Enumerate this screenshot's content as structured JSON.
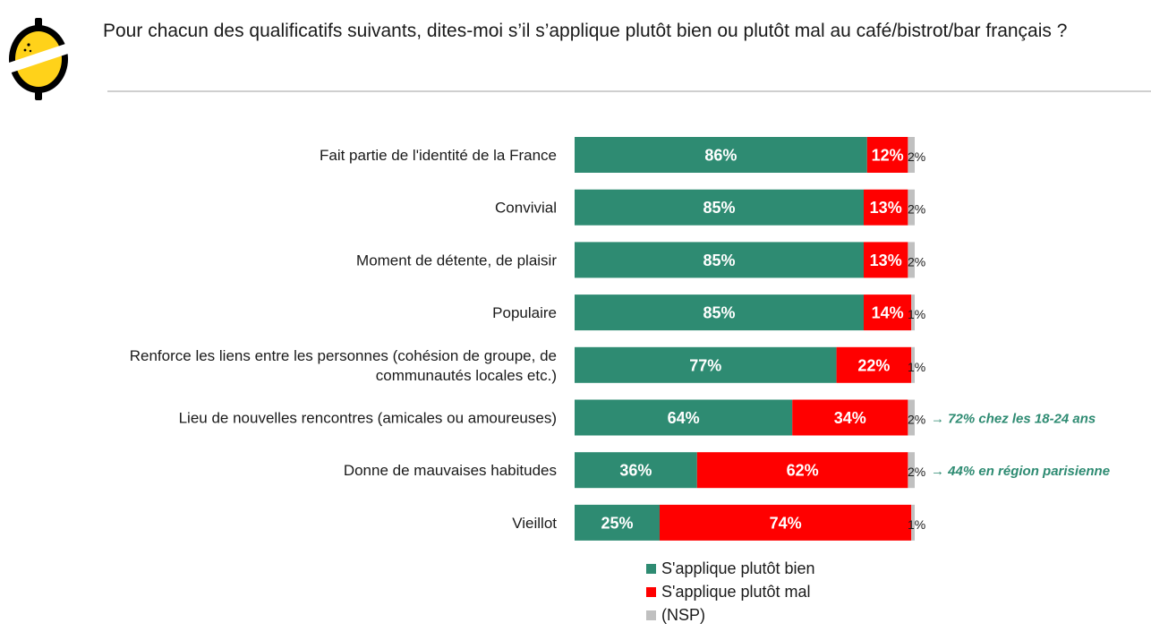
{
  "header": {
    "title": "Pour chacun des qualificatifs suivants, dites-moi s’il s’applique plutôt bien ou plutôt mal au café/bistrot/bar français ?"
  },
  "logo": {
    "icon": "lemon-logo-icon",
    "colors": {
      "body": "#000000",
      "fill": "#ffd21a"
    }
  },
  "colors": {
    "bien": "#2e8b72",
    "mal": "#ff0000",
    "nsp": "#c0c0c0",
    "note": "#2e8b72"
  },
  "chart_data": {
    "type": "bar",
    "orientation": "horizontal",
    "stacked": true,
    "categories": [
      [
        "Fait partie de l'identité de la France"
      ],
      [
        "Convivial"
      ],
      [
        "Moment de détente, de plaisir"
      ],
      [
        "Populaire"
      ],
      [
        "Renforce les liens entre les personnes (cohésion de groupe, de",
        "communautés locales etc.)"
      ],
      [
        "Lieu de nouvelles rencontres (amicales ou amoureuses)"
      ],
      [
        "Donne de mauvaises habitudes"
      ],
      [
        "Vieillot"
      ]
    ],
    "series": [
      {
        "name": "S'applique plutôt bien",
        "color": "#2e8b72",
        "values": [
          86,
          85,
          85,
          85,
          77,
          64,
          36,
          25
        ]
      },
      {
        "name": "S'applique plutôt mal",
        "color": "#ff0000",
        "values": [
          12,
          13,
          13,
          14,
          22,
          34,
          62,
          74
        ]
      },
      {
        "name": "(NSP)",
        "color": "#c0c0c0",
        "values": [
          2,
          2,
          2,
          1,
          1,
          2,
          2,
          1
        ]
      }
    ],
    "value_suffix": "%",
    "annotations": [
      {
        "category_index": 5,
        "text": "→ 72% chez les 18-24 ans"
      },
      {
        "category_index": 6,
        "text": "→ 44% en région parisienne"
      }
    ],
    "xlim": [
      0,
      100
    ],
    "grid": false,
    "legend": "bottom"
  }
}
